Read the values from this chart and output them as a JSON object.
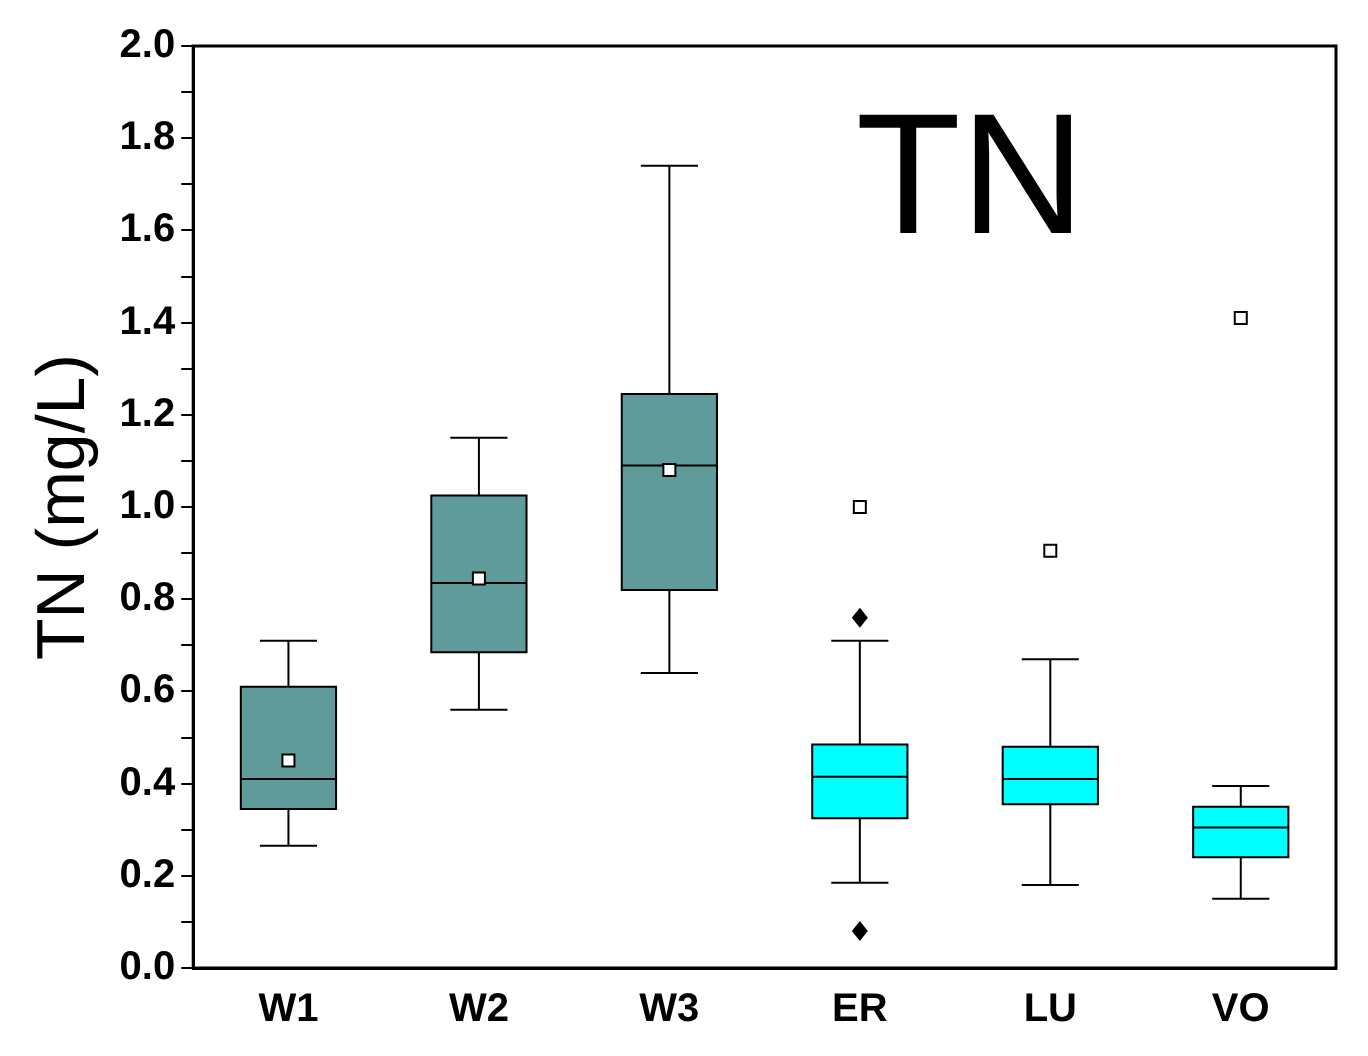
{
  "chart_data": {
    "type": "box",
    "ylabel": "TN (mg/L)",
    "annotations": [
      "TN"
    ],
    "categories": [
      "W1",
      "W2",
      "W3",
      "ER",
      "LU",
      "VO"
    ],
    "colors": [
      "#5f9b9b",
      "#5f9b9b",
      "#5f9b9b",
      "#00ffff",
      "#00ffff",
      "#00ffff"
    ],
    "boxes": [
      {
        "low": 0.265,
        "q1": 0.345,
        "median": 0.41,
        "q3": 0.61,
        "high": 0.71,
        "mean": 0.45
      },
      {
        "low": 0.56,
        "q1": 0.685,
        "median": 0.835,
        "q3": 1.025,
        "high": 1.15,
        "mean": 0.845
      },
      {
        "low": 0.64,
        "q1": 0.82,
        "median": 1.09,
        "q3": 1.245,
        "high": 1.74,
        "mean": 1.08
      },
      {
        "low": 0.185,
        "q1": 0.325,
        "median": 0.415,
        "q3": 0.485,
        "high": 0.71,
        "mean": 1.0,
        "outliers": [
          0.76,
          0.08
        ]
      },
      {
        "low": 0.18,
        "q1": 0.355,
        "median": 0.41,
        "q3": 0.48,
        "high": 0.67,
        "mean": 0.905
      },
      {
        "low": 0.15,
        "q1": 0.24,
        "median": 0.305,
        "q3": 0.35,
        "high": 0.395,
        "mean": 1.41
      }
    ],
    "ylim": [
      0,
      2
    ],
    "yticks": [
      {
        "value": 0,
        "label": "0.0"
      },
      {
        "value": 0.1,
        "label": null
      },
      {
        "value": 0.2,
        "label": "0.2"
      },
      {
        "value": 0.3,
        "label": null
      },
      {
        "value": 0.4,
        "label": "0.4"
      },
      {
        "value": 0.5,
        "label": null
      },
      {
        "value": 0.6,
        "label": "0.6"
      },
      {
        "value": 0.7,
        "label": null
      },
      {
        "value": 0.8,
        "label": "0.8"
      },
      {
        "value": 0.9,
        "label": null
      },
      {
        "value": 1,
        "label": "1.0"
      },
      {
        "value": 1.1,
        "label": null
      },
      {
        "value": 1.2,
        "label": "1.2"
      },
      {
        "value": 1.3,
        "label": null
      },
      {
        "value": 1.4,
        "label": "1.4"
      },
      {
        "value": 1.5,
        "label": null
      },
      {
        "value": 1.6,
        "label": "1.6"
      },
      {
        "value": 1.7,
        "label": null
      },
      {
        "value": 1.8,
        "label": "1.8"
      },
      {
        "value": 1.9,
        "label": null
      },
      {
        "value": 2,
        "label": "2.0"
      }
    ],
    "legend": false,
    "grid": false
  }
}
